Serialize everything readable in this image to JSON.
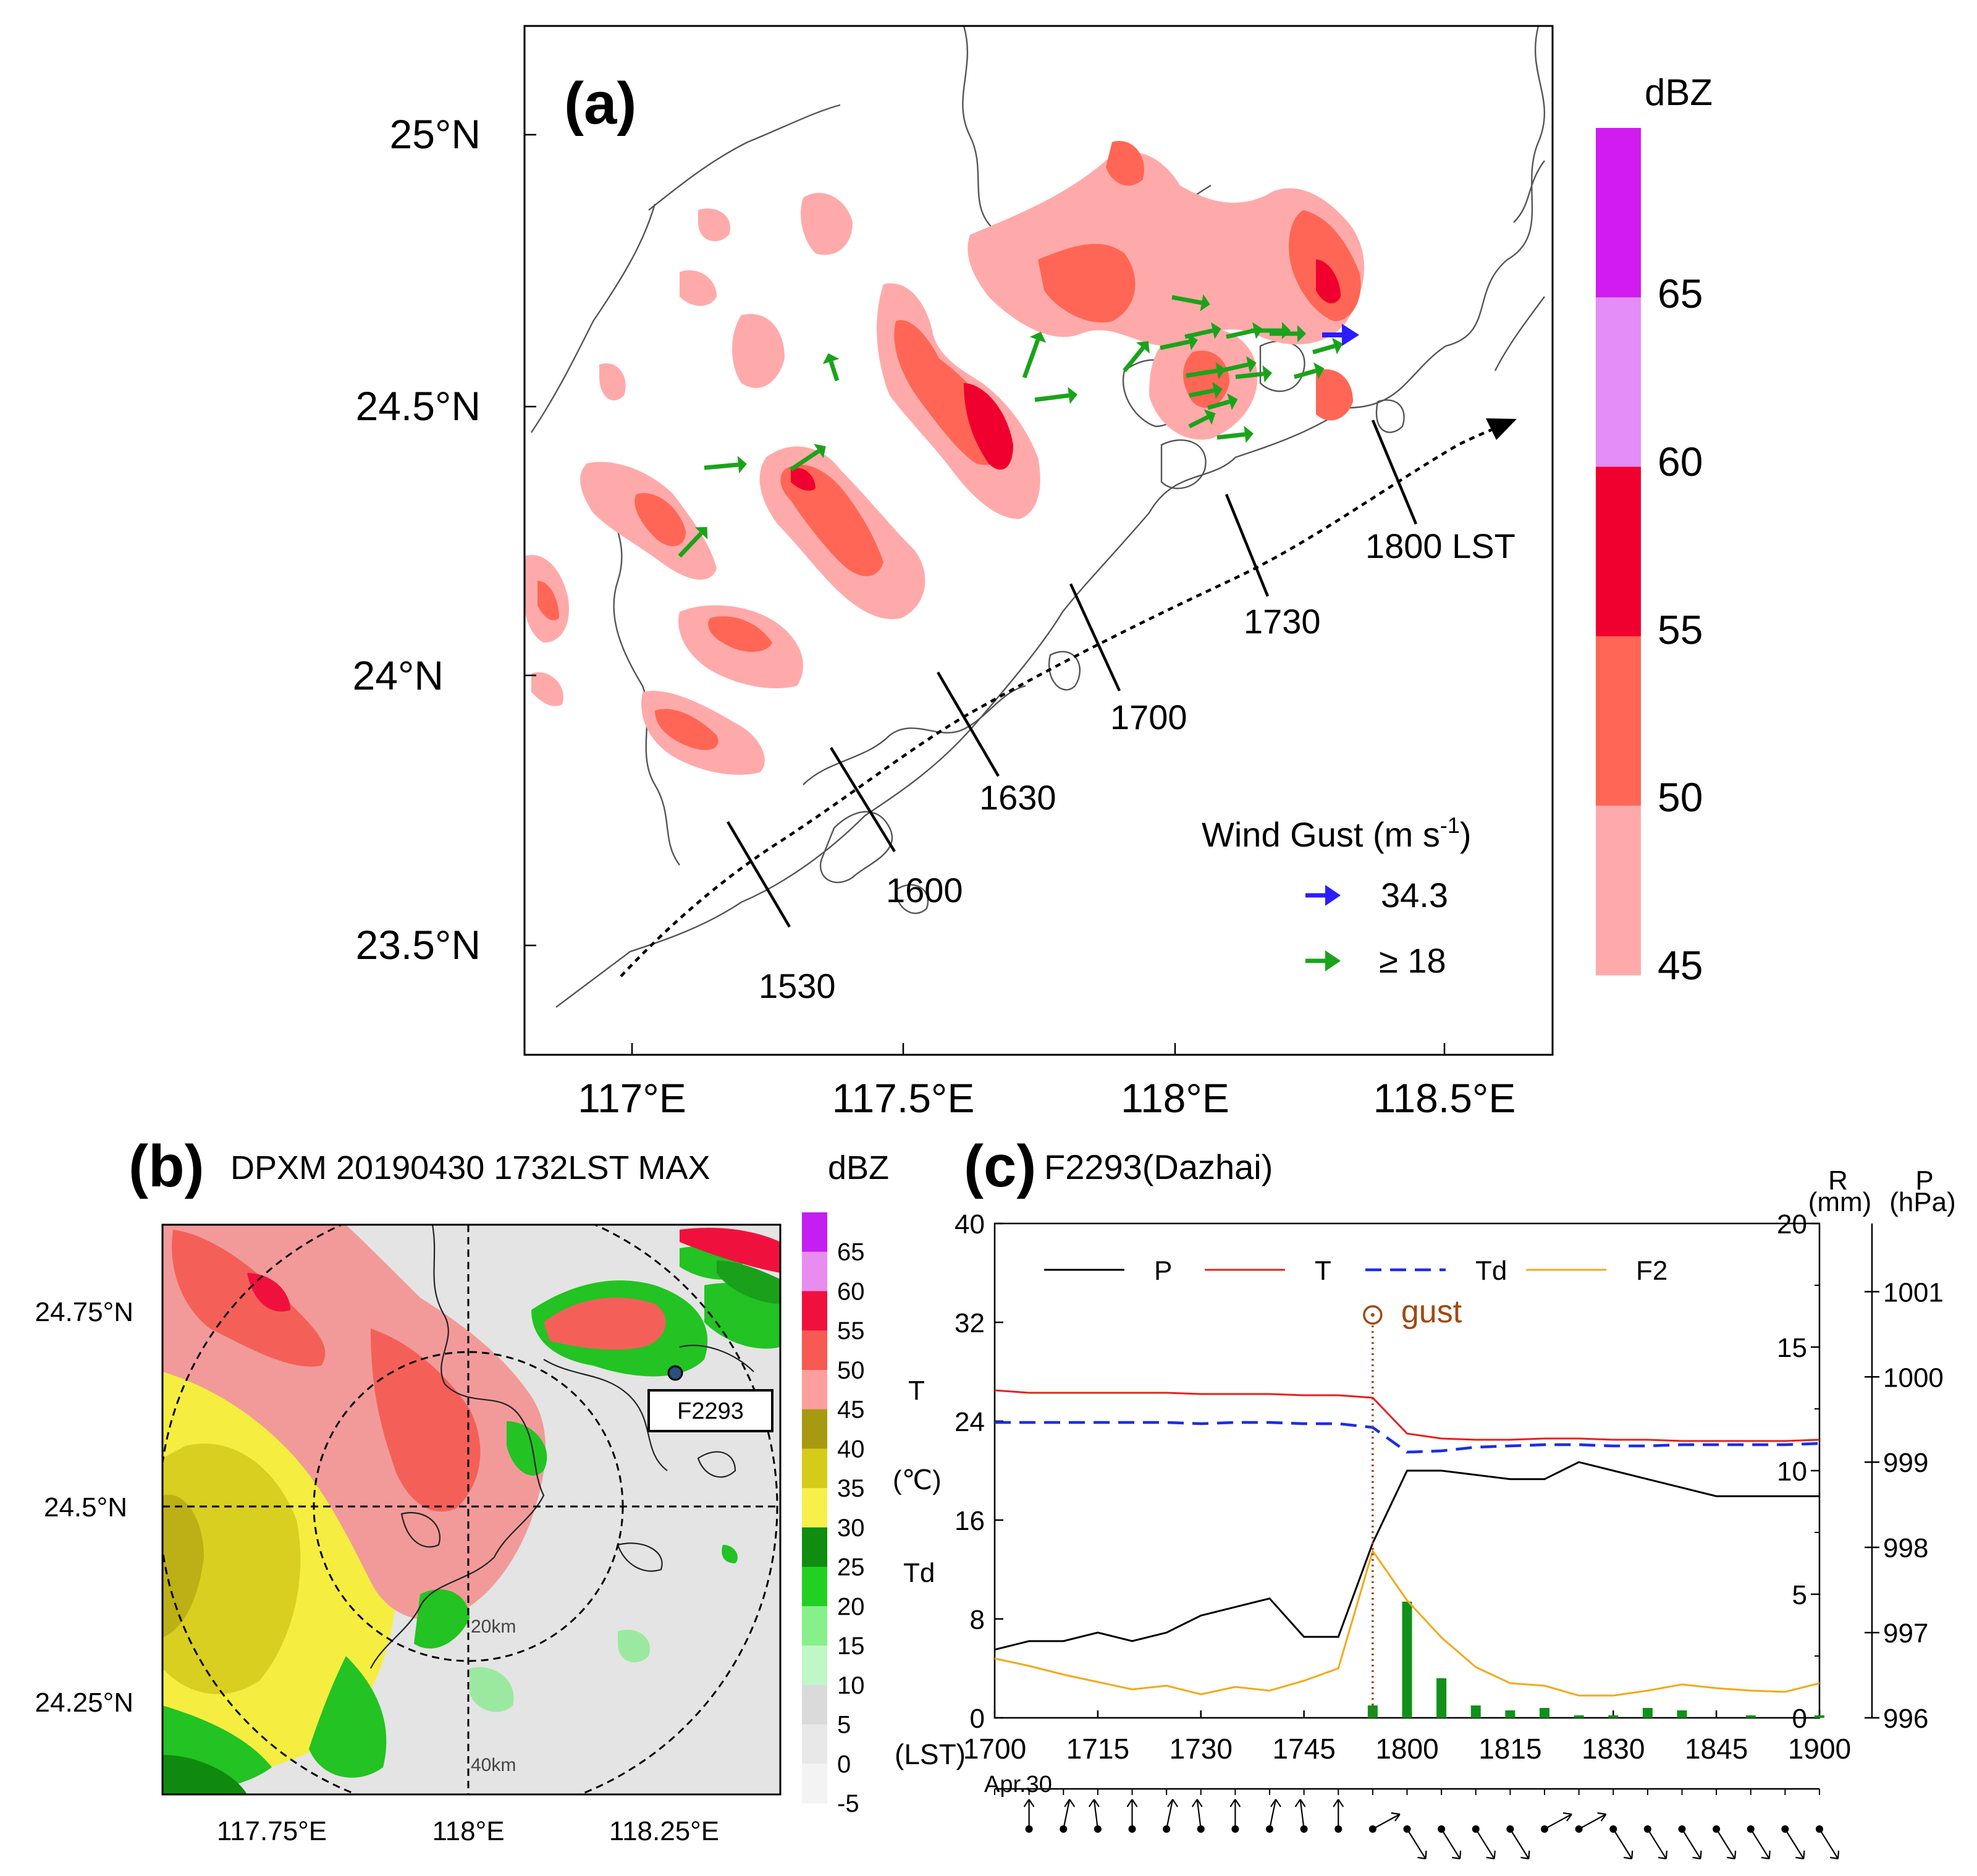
{
  "panel_a": {
    "letter": "(a)",
    "lat_ticks": [
      "25°N",
      "24.5°N",
      "24°N",
      "23.5°N"
    ],
    "lon_ticks": [
      "117°E",
      "117.5°E",
      "118°E",
      "118.5°E"
    ],
    "colorbar": {
      "title": "dBZ",
      "labels": [
        "65",
        "60",
        "55",
        "50",
        "45"
      ],
      "colors": [
        "#d21bf0",
        "#e48cf7",
        "#f0002e",
        "#ff6655",
        "#ffaaaa"
      ]
    },
    "track_times": [
      "1530",
      "1600",
      "1630",
      "1700",
      "1730",
      "1800 LST"
    ],
    "legend": {
      "title": "Wind Gust (m s",
      "title_sup": "-1",
      "title_close": ")",
      "max_value": "34.3",
      "threshold": "≥ 18",
      "max_color": "#2a1cff",
      "threshold_color": "#1aa31a"
    }
  },
  "panel_b": {
    "letter": "(b)",
    "title": "DPXM 20190430 1732LST  MAX",
    "unit": "dBZ",
    "lat_ticks": [
      "24.75°N",
      "24.5°N",
      "24.25°N"
    ],
    "lon_ticks": [
      "117.75°E",
      "118°E",
      "118.25°E"
    ],
    "station_box": "F2293",
    "ring_labels": [
      "20km",
      "40km"
    ],
    "colorbar_labels": [
      "65",
      "60",
      "55",
      "50",
      "45",
      "40",
      "35",
      "30",
      "25",
      "20",
      "15",
      "10",
      "5",
      "0",
      "-5"
    ],
    "colorbar_colors": [
      "#c41ef2",
      "#e88cf0",
      "#f0103e",
      "#f65a52",
      "#ff9e9e",
      "#a89a10",
      "#d4cc18",
      "#f7ef4a",
      "#108c10",
      "#22d022",
      "#88f08a",
      "#c0f7c6",
      "#dadada",
      "#e8e8e8",
      "#f3f3f3"
    ]
  },
  "panel_c": {
    "letter": "(c)",
    "title": "F2293(Dazhai)",
    "left_axis_label_1": "T",
    "left_axis_label_2": "(℃)",
    "left_axis_label_3": "Td",
    "right_r_label": "R",
    "right_r_unit": "(mm)",
    "right_p_label": "P",
    "right_p_unit": "(hPa)",
    "gust_label": "gust",
    "lst_label": "(LST)",
    "date_label": "Apr.30",
    "colors": {
      "P": "#000000",
      "T": "#e8201e",
      "Td": "#1a2ee8",
      "F2": "#f5a818",
      "R": "#12901a",
      "gust": "#a04a10"
    }
  },
  "chart_data": {
    "type": "line",
    "title": "F2293(Dazhai)",
    "x_label": "LST",
    "x_ticks": [
      "1700",
      "1715",
      "1730",
      "1745",
      "1800",
      "1815",
      "1830",
      "1845",
      "1900"
    ],
    "left_axis": {
      "label": "T / Td (℃)",
      "range": [
        0,
        40
      ],
      "ticks": [
        "0",
        "8",
        "16",
        "24",
        "32",
        "40"
      ]
    },
    "right_axis_R": {
      "label": "R (mm)",
      "range": [
        0,
        20
      ],
      "ticks": [
        "0",
        "5",
        "10",
        "15",
        "20"
      ]
    },
    "right_axis_P": {
      "label": "P (hPa)",
      "range": [
        996,
        1001.8
      ],
      "ticks": [
        "996",
        "997",
        "998",
        "999",
        "1000",
        "1001"
      ]
    },
    "legend": [
      "P",
      "T",
      "Td",
      "F2"
    ],
    "gust_time": 1755,
    "series": [
      {
        "name": "P",
        "axis": "P",
        "x": [
          1700,
          1705,
          1710,
          1715,
          1720,
          1725,
          1730,
          1735,
          1740,
          1745,
          1750,
          1755,
          1800,
          1805,
          1810,
          1815,
          1820,
          1825,
          1830,
          1835,
          1840,
          1845,
          1850,
          1855,
          1900
        ],
        "y": [
          996.8,
          996.9,
          996.9,
          997.0,
          996.9,
          997.0,
          997.2,
          997.3,
          997.4,
          996.95,
          996.95,
          998.05,
          998.9,
          998.9,
          998.85,
          998.8,
          998.8,
          999.0,
          998.9,
          998.8,
          998.7,
          998.6,
          998.6,
          998.6,
          998.6
        ]
      },
      {
        "name": "T",
        "axis": "left",
        "x": [
          1700,
          1705,
          1710,
          1715,
          1720,
          1725,
          1730,
          1735,
          1740,
          1745,
          1750,
          1755,
          1800,
          1805,
          1810,
          1815,
          1820,
          1825,
          1830,
          1835,
          1840,
          1845,
          1850,
          1855,
          1900
        ],
        "y": [
          26.5,
          26.3,
          26.3,
          26.3,
          26.3,
          26.3,
          26.2,
          26.2,
          26.2,
          26.1,
          26.1,
          25.9,
          23.0,
          22.6,
          22.5,
          22.5,
          22.6,
          22.6,
          22.5,
          22.5,
          22.4,
          22.4,
          22.4,
          22.4,
          22.5
        ]
      },
      {
        "name": "Td",
        "axis": "left",
        "x": [
          1700,
          1705,
          1710,
          1715,
          1720,
          1725,
          1730,
          1735,
          1740,
          1745,
          1750,
          1755,
          1800,
          1805,
          1810,
          1815,
          1820,
          1825,
          1830,
          1835,
          1840,
          1845,
          1850,
          1855,
          1900
        ],
        "y": [
          23.9,
          23.9,
          23.9,
          23.9,
          23.9,
          23.9,
          23.8,
          23.9,
          23.9,
          23.8,
          23.8,
          23.5,
          21.5,
          21.6,
          21.9,
          22.0,
          22.1,
          22.1,
          22.0,
          22.0,
          22.1,
          22.1,
          22.1,
          22.1,
          22.2
        ]
      },
      {
        "name": "F2",
        "axis": "left",
        "x": [
          1700,
          1705,
          1710,
          1715,
          1720,
          1725,
          1730,
          1735,
          1740,
          1745,
          1750,
          1755,
          1800,
          1805,
          1810,
          1815,
          1820,
          1825,
          1830,
          1835,
          1840,
          1845,
          1850,
          1855,
          1900
        ],
        "y": [
          4.8,
          4.2,
          3.5,
          2.9,
          2.3,
          2.6,
          1.9,
          2.5,
          2.2,
          3.0,
          4.0,
          13.5,
          9.5,
          6.5,
          4.1,
          2.8,
          2.6,
          1.8,
          1.8,
          2.2,
          2.7,
          2.4,
          2.2,
          2.1,
          2.8
        ]
      },
      {
        "name": "R",
        "axis": "R",
        "type": "bar",
        "x": [
          1755,
          1800,
          1805,
          1810,
          1815,
          1820,
          1825,
          1830,
          1835,
          1840,
          1845,
          1850,
          1855,
          1900
        ],
        "y": [
          0.5,
          4.7,
          1.6,
          0.5,
          0.3,
          0.4,
          0.1,
          0.1,
          0.4,
          0.3,
          0.0,
          0.1,
          0.0,
          0.1
        ]
      }
    ]
  }
}
